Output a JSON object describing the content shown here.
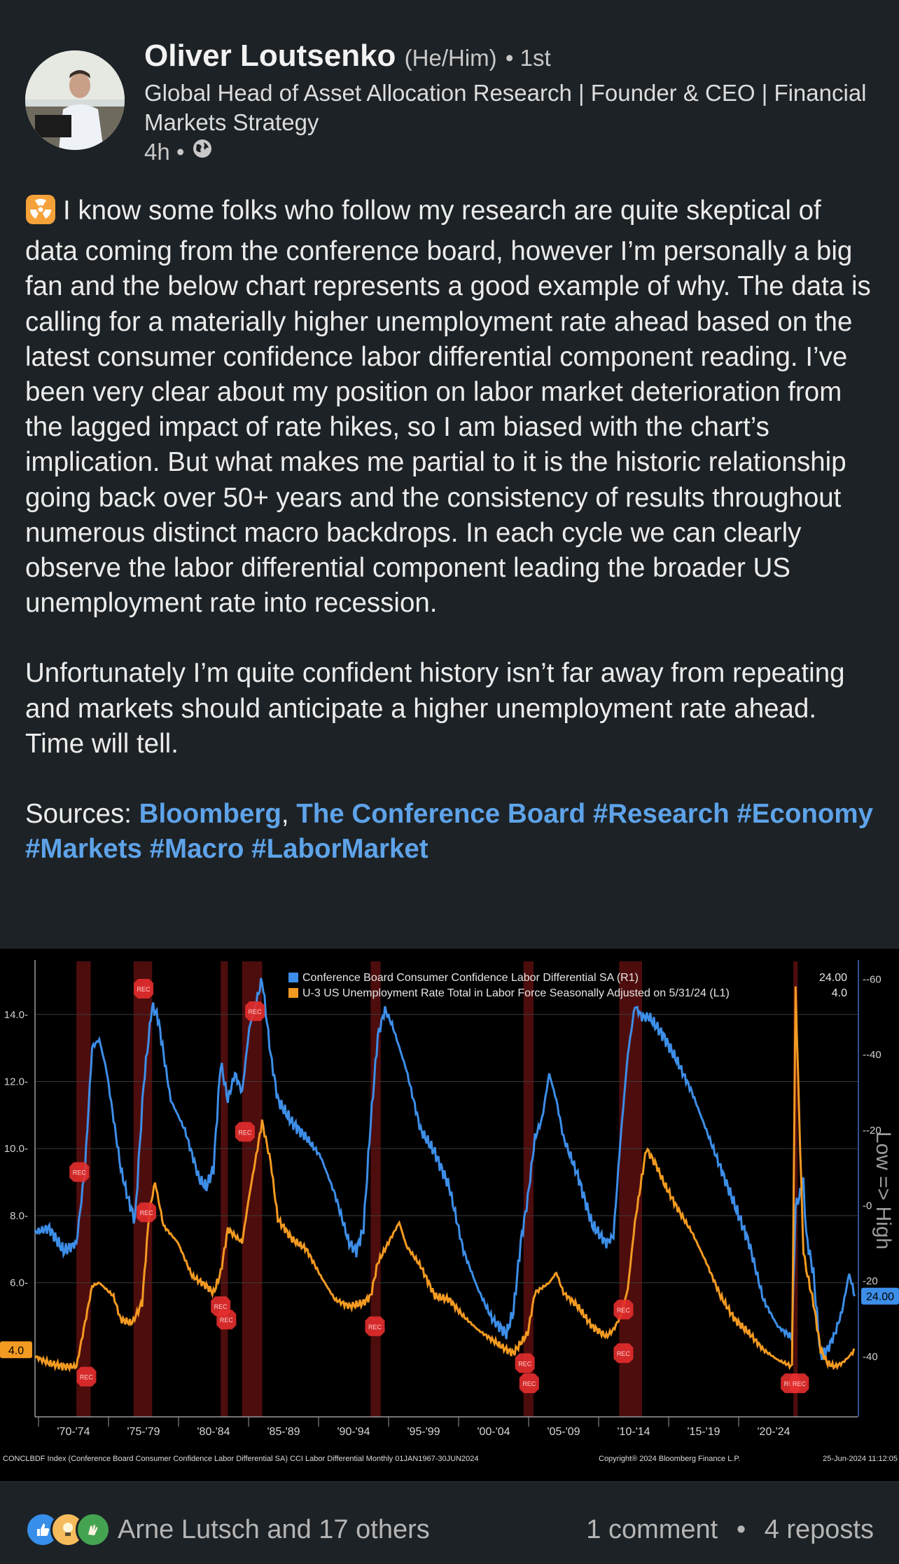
{
  "post": {
    "author": {
      "name": "Oliver Loutsenko",
      "pronouns": "(He/Him)",
      "degree": "• 1st",
      "headline": "Global Head of Asset Allocation Research | Founder & CEO | Financial Markets Strategy",
      "time": "4h •"
    },
    "body": {
      "p1": "I know some folks who follow my research are quite skeptical of data coming from the conference board, however I’m personally a big fan and the below chart represents a good example of why. The data is calling for a materially higher unemployment rate ahead based on the latest consumer confidence labor differential component reading. I’ve been very clear about my position on labor market deterioration from the lagged impact of rate hikes, so I am biased with the chart’s implication. But what makes me partial to it is the historic relationship going back over 50+ years and the consistency of results throughout numerous distinct macro backdrops. In each cycle we can clearly observe the labor differential component leading the broader US unemployment rate into recession.",
      "p2": "Unfortunately I’m quite confident history isn’t far away from repeating and markets should anticipate a higher unemployment rate ahead. Time will tell.",
      "sources_label": "Sources: ",
      "source1": "Bloomberg",
      "sep": ", ",
      "source2": "The Conference Board",
      "hashtags": [
        "#Research",
        "#Economy",
        "#Markets",
        "#Macro",
        "#LaborMarket"
      ]
    }
  },
  "social": {
    "reactors": "Arne Lutsch and 17 others",
    "comments": "1 comment",
    "dot": "•",
    "reposts": "4 reposts"
  },
  "colors": {
    "blue": "#3d8ee8",
    "orange": "#f39a22",
    "link": "#5ea3e9",
    "rec": "#e52d2d"
  },
  "chart_data": {
    "type": "line",
    "legend": [
      {
        "name": "Conference Board Consumer Confidence Labor Differential SA  (R1)",
        "value": "24.00",
        "color": "#3d8ee8"
      },
      {
        "name": "U-3 US Unemployment Rate Total in Labor Force Seasonally Adjusted on 5/31/24 (L1)",
        "value": "4.0",
        "color": "#f39a22"
      }
    ],
    "left_axis": {
      "ticks": [
        "14.0",
        "12.0",
        "10.0",
        "8.0",
        "6.0"
      ],
      "ylim": [
        2.0,
        15.5
      ]
    },
    "right_axis": {
      "ticks": [
        "-60",
        "-40",
        "-20",
        "0",
        "20",
        "40"
      ],
      "ylim": [
        -64,
        56
      ],
      "inverted": true,
      "label": "Low => High"
    },
    "last_values": {
      "left": "4.0",
      "right": "24.00"
    },
    "x_ticks": [
      "'70-'74",
      "'75-'79",
      "'80-'84",
      "'85-'89",
      "'90-'94",
      "'95-'99",
      "'00-'04",
      "'05-'09",
      "'10-'14",
      "'15-'19",
      "'20-'24"
    ],
    "x_range": [
      1967.0,
      2024.6
    ],
    "recessions": [
      [
        1969.9,
        1970.9
      ],
      [
        1973.9,
        1975.2
      ],
      [
        1980.0,
        1980.5
      ],
      [
        1981.5,
        1982.9
      ],
      [
        1990.5,
        1991.2
      ],
      [
        2001.2,
        2001.9
      ],
      [
        2007.9,
        2009.5
      ],
      [
        2020.1,
        2020.4
      ]
    ],
    "rec_marker_label": "REC",
    "unemployment": [
      [
        1967.0,
        3.8
      ],
      [
        1968.0,
        3.6
      ],
      [
        1969.0,
        3.5
      ],
      [
        1969.9,
        3.5
      ],
      [
        1970.5,
        4.8
      ],
      [
        1971.0,
        5.9
      ],
      [
        1971.5,
        6.0
      ],
      [
        1972.0,
        5.8
      ],
      [
        1972.5,
        5.6
      ],
      [
        1973.0,
        4.9
      ],
      [
        1973.8,
        4.8
      ],
      [
        1974.5,
        5.4
      ],
      [
        1975.0,
        8.1
      ],
      [
        1975.4,
        9.0
      ],
      [
        1976.0,
        7.7
      ],
      [
        1977.0,
        7.2
      ],
      [
        1978.0,
        6.2
      ],
      [
        1979.0,
        5.9
      ],
      [
        1979.5,
        5.7
      ],
      [
        1980.0,
        6.3
      ],
      [
        1980.5,
        7.6
      ],
      [
        1981.0,
        7.4
      ],
      [
        1981.5,
        7.2
      ],
      [
        1982.0,
        8.6
      ],
      [
        1982.9,
        10.8
      ],
      [
        1983.5,
        9.6
      ],
      [
        1984.0,
        7.9
      ],
      [
        1985.0,
        7.3
      ],
      [
        1986.0,
        7.0
      ],
      [
        1987.0,
        6.2
      ],
      [
        1988.0,
        5.5
      ],
      [
        1989.0,
        5.3
      ],
      [
        1990.0,
        5.4
      ],
      [
        1990.5,
        5.6
      ],
      [
        1991.0,
        6.6
      ],
      [
        1992.0,
        7.4
      ],
      [
        1992.5,
        7.8
      ],
      [
        1993.0,
        7.1
      ],
      [
        1994.0,
        6.5
      ],
      [
        1995.0,
        5.6
      ],
      [
        1996.0,
        5.5
      ],
      [
        1997.0,
        5.0
      ],
      [
        1998.0,
        4.6
      ],
      [
        1999.0,
        4.3
      ],
      [
        2000.0,
        4.0
      ],
      [
        2000.5,
        3.9
      ],
      [
        2001.5,
        4.5
      ],
      [
        2002.0,
        5.7
      ],
      [
        2003.0,
        6.0
      ],
      [
        2003.5,
        6.3
      ],
      [
        2004.0,
        5.7
      ],
      [
        2005.0,
        5.3
      ],
      [
        2006.0,
        4.7
      ],
      [
        2007.0,
        4.4
      ],
      [
        2007.5,
        4.6
      ],
      [
        2008.0,
        5.0
      ],
      [
        2008.5,
        5.8
      ],
      [
        2009.0,
        7.8
      ],
      [
        2009.8,
        10.0
      ],
      [
        2010.5,
        9.5
      ],
      [
        2011.0,
        9.0
      ],
      [
        2012.0,
        8.2
      ],
      [
        2013.0,
        7.5
      ],
      [
        2014.0,
        6.6
      ],
      [
        2015.0,
        5.6
      ],
      [
        2016.0,
        4.9
      ],
      [
        2017.0,
        4.5
      ],
      [
        2018.0,
        4.0
      ],
      [
        2019.0,
        3.7
      ],
      [
        2020.0,
        3.5
      ],
      [
        2020.25,
        14.8
      ],
      [
        2020.5,
        11.0
      ],
      [
        2020.8,
        6.9
      ],
      [
        2021.0,
        6.4
      ],
      [
        2021.5,
        5.4
      ],
      [
        2022.0,
        4.0
      ],
      [
        2022.5,
        3.6
      ],
      [
        2023.0,
        3.5
      ],
      [
        2023.5,
        3.6
      ],
      [
        2024.0,
        3.8
      ],
      [
        2024.4,
        4.0
      ]
    ],
    "labor_differential": [
      [
        1967.0,
        7
      ],
      [
        1968.0,
        6
      ],
      [
        1969.0,
        12
      ],
      [
        1969.9,
        10
      ],
      [
        1970.5,
        -10
      ],
      [
        1971.0,
        -42
      ],
      [
        1971.5,
        -44
      ],
      [
        1972.0,
        -36
      ],
      [
        1973.0,
        -10
      ],
      [
        1973.5,
        -2
      ],
      [
        1974.0,
        4
      ],
      [
        1974.6,
        -32
      ],
      [
        1975.2,
        -53
      ],
      [
        1975.6,
        -50
      ],
      [
        1976.5,
        -28
      ],
      [
        1977.5,
        -20
      ],
      [
        1978.5,
        -7
      ],
      [
        1979.0,
        -5
      ],
      [
        1979.5,
        -10
      ],
      [
        1980.0,
        -38
      ],
      [
        1980.5,
        -28
      ],
      [
        1981.0,
        -35
      ],
      [
        1981.5,
        -30
      ],
      [
        1982.0,
        -47
      ],
      [
        1982.9,
        -60
      ],
      [
        1983.5,
        -40
      ],
      [
        1984.0,
        -28
      ],
      [
        1985.0,
        -22
      ],
      [
        1986.0,
        -18
      ],
      [
        1987.0,
        -13
      ],
      [
        1988.0,
        -3
      ],
      [
        1989.0,
        10
      ],
      [
        1989.5,
        12
      ],
      [
        1990.0,
        6
      ],
      [
        1990.5,
        -22
      ],
      [
        1991.0,
        -45
      ],
      [
        1991.5,
        -52
      ],
      [
        1992.0,
        -48
      ],
      [
        1992.5,
        -42
      ],
      [
        1993.0,
        -36
      ],
      [
        1994.0,
        -20
      ],
      [
        1995.0,
        -14
      ],
      [
        1996.0,
        -5
      ],
      [
        1997.0,
        12
      ],
      [
        1998.0,
        22
      ],
      [
        1999.0,
        30
      ],
      [
        2000.0,
        34
      ],
      [
        2000.5,
        28
      ],
      [
        2001.0,
        10
      ],
      [
        2001.5,
        -2
      ],
      [
        2002.0,
        -18
      ],
      [
        2002.5,
        -23
      ],
      [
        2003.0,
        -35
      ],
      [
        2003.5,
        -28
      ],
      [
        2004.0,
        -18
      ],
      [
        2005.0,
        -8
      ],
      [
        2006.0,
        5
      ],
      [
        2007.0,
        10
      ],
      [
        2007.5,
        8
      ],
      [
        2008.0,
        -18
      ],
      [
        2008.5,
        -40
      ],
      [
        2009.0,
        -53
      ],
      [
        2009.5,
        -50
      ],
      [
        2010.0,
        -50
      ],
      [
        2011.0,
        -45
      ],
      [
        2012.0,
        -38
      ],
      [
        2013.0,
        -30
      ],
      [
        2014.0,
        -20
      ],
      [
        2015.0,
        -10
      ],
      [
        2016.0,
        0
      ],
      [
        2017.0,
        10
      ],
      [
        2018.0,
        25
      ],
      [
        2019.0,
        32
      ],
      [
        2020.0,
        35
      ],
      [
        2020.25,
        0
      ],
      [
        2020.5,
        -2
      ],
      [
        2020.8,
        -7
      ],
      [
        2021.0,
        8
      ],
      [
        2021.5,
        18
      ],
      [
        2022.0,
        40
      ],
      [
        2022.5,
        38
      ],
      [
        2023.0,
        34
      ],
      [
        2023.5,
        28
      ],
      [
        2024.0,
        18
      ],
      [
        2024.4,
        24
      ]
    ],
    "footer_left": "CONCLBDF Index (Conference Board Consumer Confidence Labor Differential SA) CCI Labor Differential  Monthly 01JAN1967-30JUN2024",
    "footer_mid": "Copyright® 2024 Bloomberg Finance L.P.",
    "footer_right": "25-Jun-2024 11:12:05"
  }
}
